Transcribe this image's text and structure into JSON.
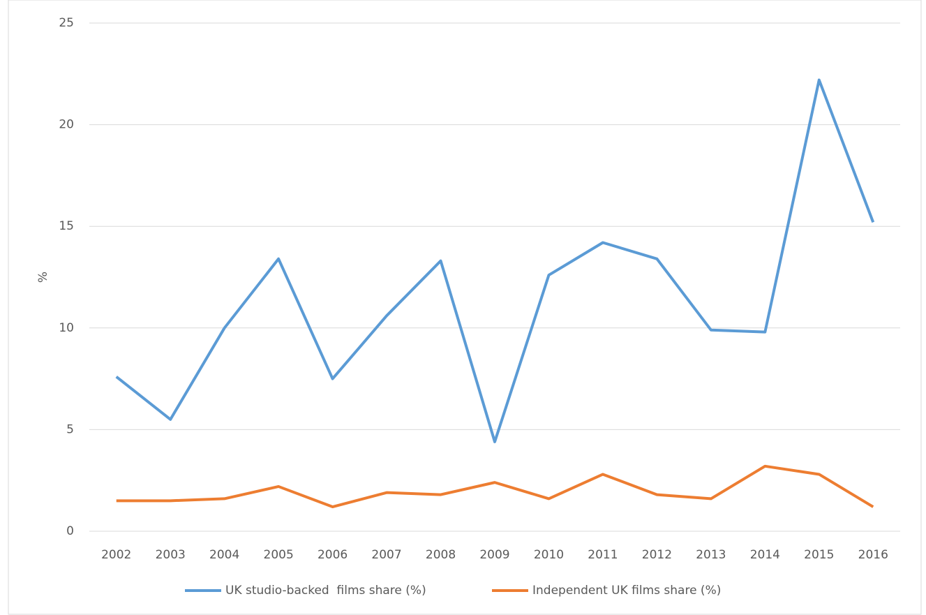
{
  "chart_data": {
    "type": "line",
    "y_label": "%",
    "categories": [
      "2002",
      "2003",
      "2004",
      "2005",
      "2006",
      "2007",
      "2008",
      "2009",
      "2010",
      "2011",
      "2012",
      "2013",
      "2014",
      "2015",
      "2016"
    ],
    "series": [
      {
        "name": "UK studio-backed  films share (%)",
        "color": "#5b9bd5",
        "values": [
          7.6,
          5.5,
          10.0,
          13.4,
          7.5,
          10.6,
          13.3,
          4.4,
          12.6,
          14.2,
          13.4,
          9.9,
          9.8,
          22.2,
          15.2
        ]
      },
      {
        "name": "Independent UK films share (%)",
        "color": "#ed7d31",
        "values": [
          1.5,
          1.5,
          1.6,
          2.2,
          1.2,
          1.9,
          1.8,
          2.4,
          1.6,
          2.8,
          1.8,
          1.6,
          3.2,
          2.8,
          1.2
        ]
      }
    ],
    "ylim": [
      0,
      25
    ],
    "yticks": [
      0,
      5,
      10,
      15,
      20,
      25
    ],
    "grid": true,
    "legend": "bottom"
  }
}
